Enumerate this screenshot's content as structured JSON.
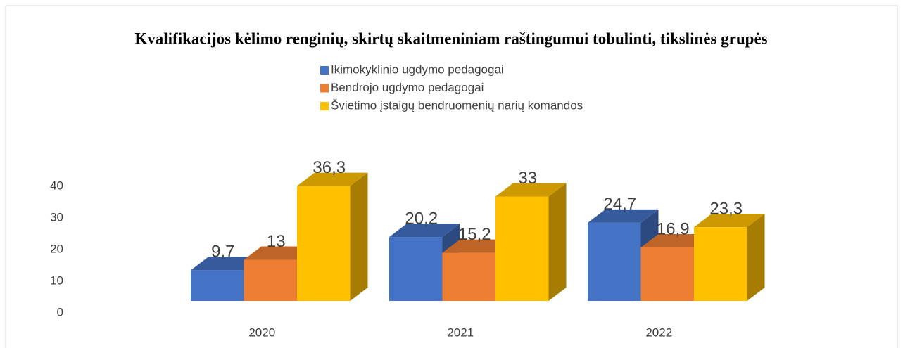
{
  "chart_data": {
    "type": "bar3d",
    "title": "Kvalifikacijos kėlimo renginių, skirtų skaitmeniniam raštingumui tobulinti, tikslinės grupės",
    "categories": [
      "2020",
      "2021",
      "2022"
    ],
    "series": [
      {
        "name": "Ikimokyklinio ugdymo pedagogai",
        "color": "#4472c4",
        "values": [
          9.7,
          20.2,
          24.7
        ],
        "value_labels": [
          "9,7",
          "20,2",
          "24,7"
        ]
      },
      {
        "name": "Bendrojo ugdymo pedagogai",
        "color": "#ed7d31",
        "values": [
          13,
          15.2,
          16.9
        ],
        "value_labels": [
          "13",
          "15,2",
          "16,9"
        ]
      },
      {
        "name": "Švietimo įstaigų bendruomenių narių komandos",
        "color": "#ffc000",
        "values": [
          36.3,
          33,
          23.3
        ],
        "value_labels": [
          "36,3",
          "33",
          "23,3"
        ]
      }
    ],
    "ylim": [
      0,
      40
    ],
    "yticks": [
      0,
      10,
      20,
      30,
      40
    ],
    "legend": "top"
  }
}
